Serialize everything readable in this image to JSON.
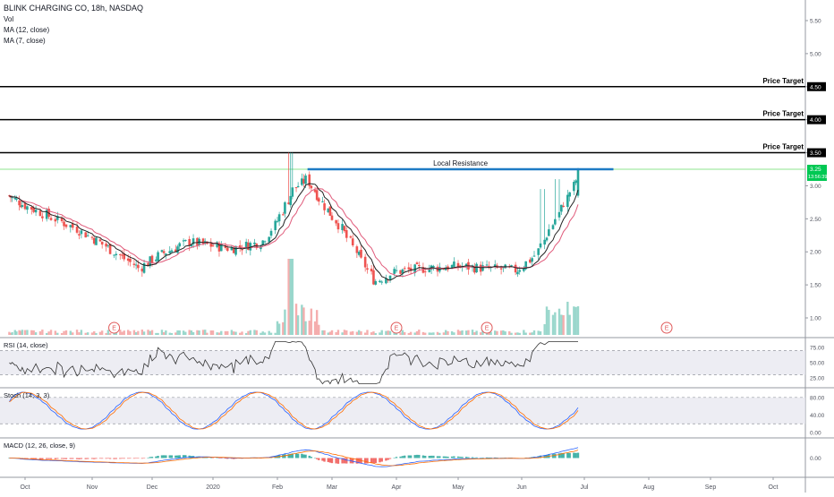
{
  "legend": {
    "symbol_line": "BLINK CHARGING CO, 1&#x8;h, NASDAQ",
    "vol": "Vol",
    "ma1": "MA (12, close)",
    "ma2": "MA (7, close)"
  },
  "colors": {
    "up": "#26a69a",
    "down": "#ef5350",
    "ma12": "#e05a7a",
    "ma7": "#222222",
    "resistance": "#1e7bc4",
    "current_price": "#00c853",
    "macd": "#2962ff",
    "signal": "#ff6d00",
    "rsi": "#333333"
  },
  "chart_data": [
    {
      "type": "candlestick",
      "name": "price-pane",
      "x_tick_labels": [
        "Oct",
        "Nov",
        "Dec",
        "2020",
        "Feb",
        "Mar",
        "Apr",
        "May",
        "Jun",
        "Jul",
        "Aug",
        "Sep",
        "Oct"
      ],
      "y_ticks": [
        1.0,
        1.5,
        2.0,
        2.5,
        3.0,
        3.5,
        4.0,
        4.5,
        5.0,
        5.5
      ],
      "y_tick_labels": [
        "1.00",
        "1.50",
        "2.00",
        "2.50",
        "3.00",
        "3.50",
        "4.00",
        "4.50",
        "5.00",
        "5.50"
      ],
      "ylim": [
        0.8,
        5.7
      ],
      "close_points": [
        {
          "date": "2019-09-20",
          "close": 2.85
        },
        {
          "date": "2019-10-05",
          "close": 2.65
        },
        {
          "date": "2019-10-25",
          "close": 2.35
        },
        {
          "date": "2019-11-10",
          "close": 2.05
        },
        {
          "date": "2019-11-25",
          "close": 1.75
        },
        {
          "date": "2019-12-05",
          "close": 1.95
        },
        {
          "date": "2019-12-20",
          "close": 2.15
        },
        {
          "date": "2020-01-10",
          "close": 2.05
        },
        {
          "date": "2020-01-25",
          "close": 2.15
        },
        {
          "date": "2020-02-01",
          "close": 2.45
        },
        {
          "date": "2020-02-10",
          "close": 2.95
        },
        {
          "date": "2020-02-17",
          "close": 3.1
        },
        {
          "date": "2020-02-25",
          "close": 2.75
        },
        {
          "date": "2020-03-05",
          "close": 2.4
        },
        {
          "date": "2020-03-15",
          "close": 1.9
        },
        {
          "date": "2020-03-22",
          "close": 1.55
        },
        {
          "date": "2020-04-01",
          "close": 1.7
        },
        {
          "date": "2020-04-15",
          "close": 1.75
        },
        {
          "date": "2020-05-01",
          "close": 1.78
        },
        {
          "date": "2020-05-15",
          "close": 1.75
        },
        {
          "date": "2020-05-30",
          "close": 1.72
        },
        {
          "date": "2020-06-08",
          "close": 1.95
        },
        {
          "date": "2020-06-15",
          "close": 2.35
        },
        {
          "date": "2020-06-22",
          "close": 2.75
        },
        {
          "date": "2020-06-30",
          "close": 3.25
        }
      ],
      "horizontal_levels": [
        {
          "value": 4.5,
          "label": "Price Target",
          "tag": "4.50"
        },
        {
          "value": 4.0,
          "label": "Price Target",
          "tag": "4.00"
        },
        {
          "value": 3.5,
          "label": "Price Target",
          "tag": "3.50"
        }
      ],
      "resistance": {
        "label": "Local Resistance",
        "value": 3.25,
        "from": "2020-02-17",
        "to": "2020-07-15"
      },
      "current_price": {
        "value": 3.25,
        "tag": "3.25",
        "countdown": "13:56:39"
      },
      "earnings_markers": [
        {
          "date": "2019-11-12",
          "label": "E"
        },
        {
          "date": "2020-04-01",
          "label": "E"
        },
        {
          "date": "2020-05-15",
          "label": "E"
        },
        {
          "date": "2020-08-10",
          "label": "E"
        }
      ]
    },
    {
      "type": "line",
      "name": "rsi-pane",
      "label": "RSI (14, close)",
      "y_ticks": [
        25,
        50,
        75
      ],
      "y_tick_labels": [
        "25.00",
        "50.00",
        "75.00"
      ],
      "ylim": [
        10,
        90
      ],
      "band": [
        30,
        70
      ]
    },
    {
      "type": "line",
      "name": "stoch-pane",
      "label": "Stoch (14, 3, 3)",
      "y_ticks": [
        0,
        40,
        80
      ],
      "y_tick_labels": [
        "0.00",
        "40.00",
        "80.00"
      ],
      "ylim": [
        -10,
        100
      ],
      "band": [
        20,
        80
      ]
    },
    {
      "type": "bar",
      "name": "macd-pane",
      "label": "MACD (12, 26, close, 9)",
      "y_ticks": [
        0
      ],
      "y_tick_labels": [
        "0.00"
      ],
      "ylim": [
        -0.6,
        0.6
      ]
    }
  ]
}
